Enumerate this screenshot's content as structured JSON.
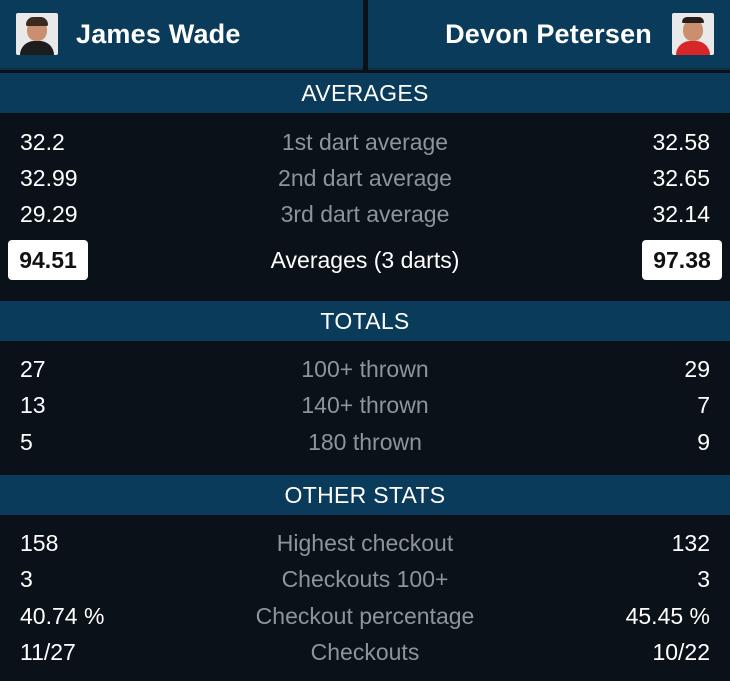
{
  "players": {
    "left": {
      "name": "James Wade",
      "avatar_icon": "player-photo-wade"
    },
    "right": {
      "name": "Devon Petersen",
      "avatar_icon": "player-photo-petersen"
    }
  },
  "sections": {
    "averages": {
      "title": "AVERAGES",
      "rows": [
        {
          "label": "1st dart average",
          "left": "32.2",
          "right": "32.58"
        },
        {
          "label": "2nd dart average",
          "left": "32.99",
          "right": "32.65"
        },
        {
          "label": "3rd dart average",
          "left": "29.29",
          "right": "32.14"
        }
      ],
      "total": {
        "label": "Averages (3 darts)",
        "left": "94.51",
        "right": "97.38"
      }
    },
    "totals": {
      "title": "TOTALS",
      "rows": [
        {
          "label": "100+ thrown",
          "left": "27",
          "right": "29"
        },
        {
          "label": "140+ thrown",
          "left": "13",
          "right": "7"
        },
        {
          "label": "180 thrown",
          "left": "5",
          "right": "9"
        }
      ]
    },
    "other": {
      "title": "OTHER STATS",
      "rows": [
        {
          "label": "Highest checkout",
          "left": "158",
          "right": "132"
        },
        {
          "label": "Checkouts 100+",
          "left": "3",
          "right": "3"
        },
        {
          "label": "Checkout percentage",
          "left": "40.74 %",
          "right": "45.45 %"
        },
        {
          "label": "Checkouts",
          "left": "11/27",
          "right": "10/22"
        }
      ]
    }
  },
  "colors": {
    "background": "#0a1118",
    "header_bar": "#0b3b5b",
    "label_text": "#8d949a",
    "value_text": "#ffffff"
  }
}
